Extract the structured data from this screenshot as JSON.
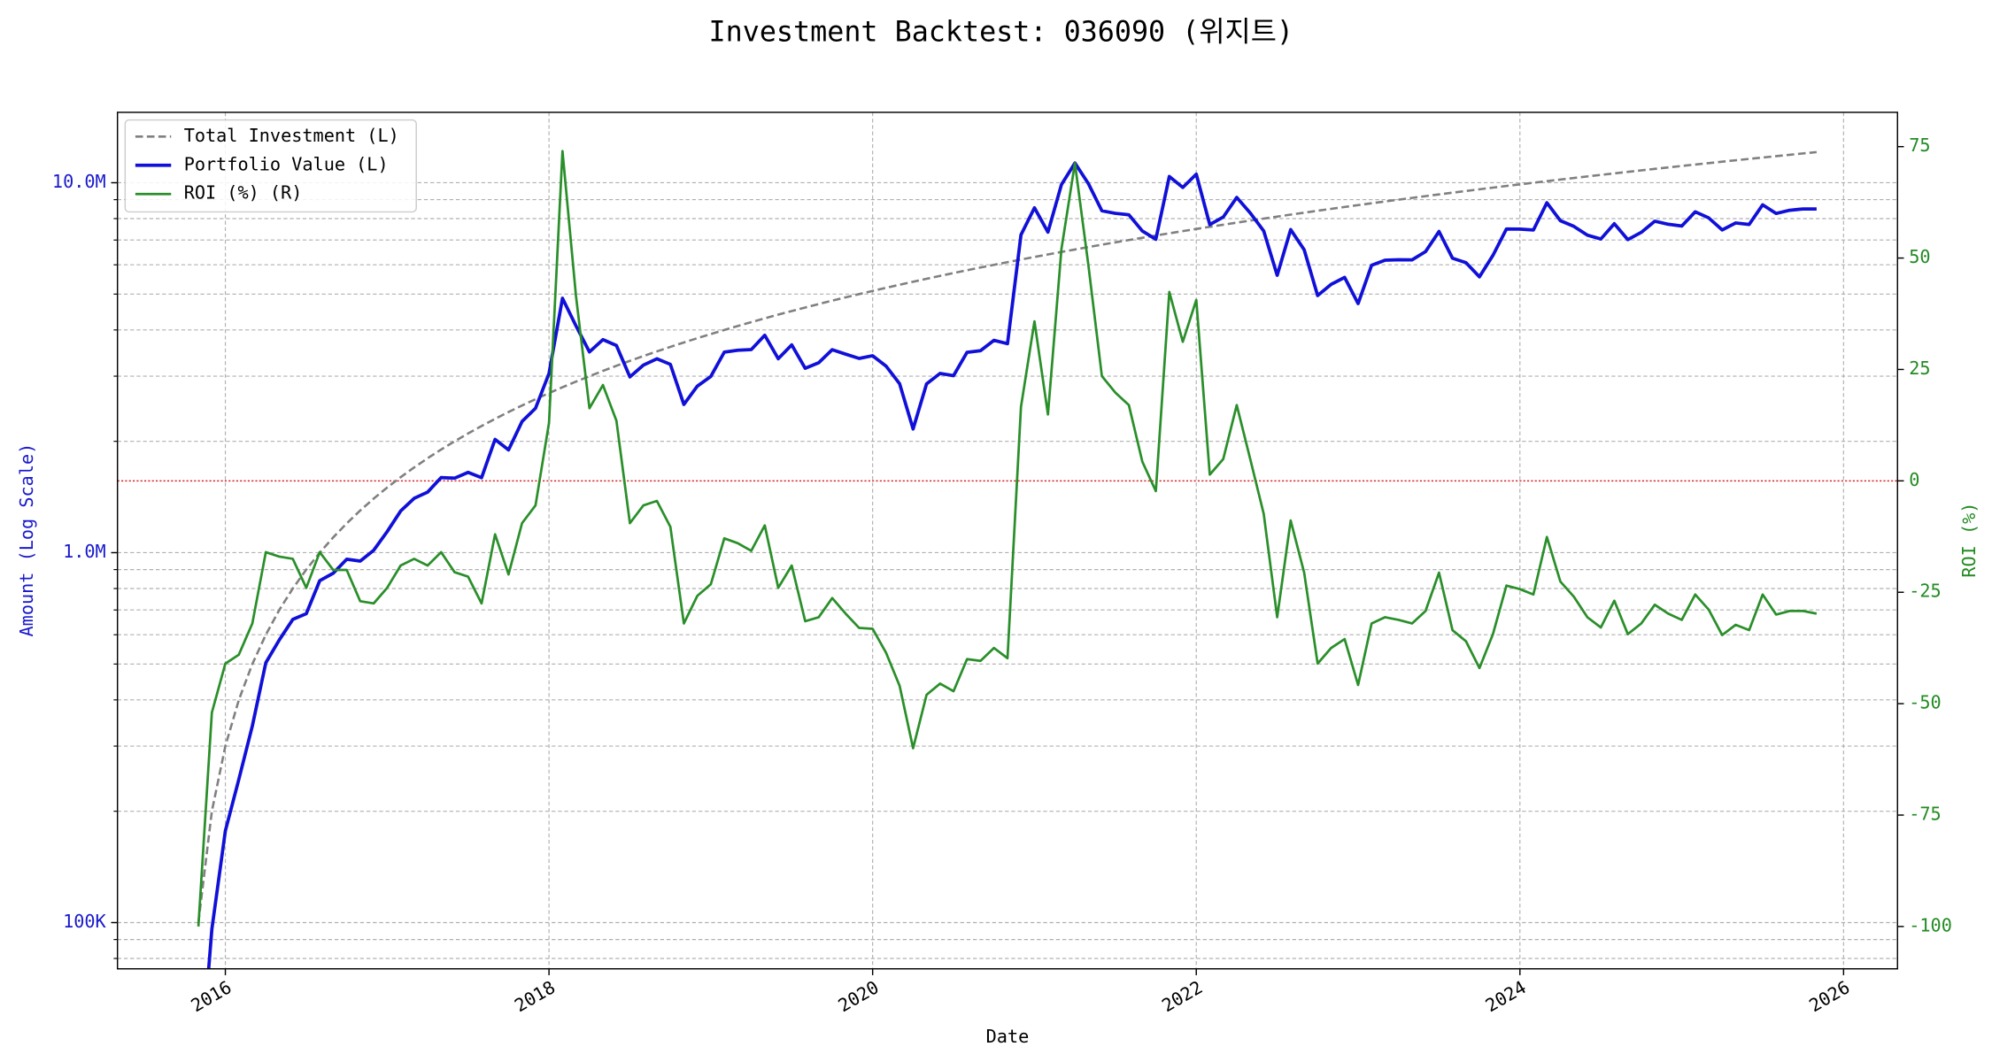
{
  "chart_data": {
    "type": "line",
    "title": "Investment Backtest: 036090 (위지트)",
    "x_label": "Date",
    "y_label": "Amount (Log Scale)",
    "y2_label": "ROI (%)",
    "log_y": true,
    "grid": true,
    "legend": "upper left",
    "y_color": "#1a1acc",
    "y2_color": "#228b22",
    "refline": {
      "axis": "y2",
      "value": 0,
      "color": "#d62728"
    },
    "x": [
      "2015-11",
      "2015-12",
      "2016-01",
      "2016-02",
      "2016-03",
      "2016-04",
      "2016-05",
      "2016-06",
      "2016-07",
      "2016-08",
      "2016-09",
      "2016-10",
      "2016-11",
      "2016-12",
      "2017-01",
      "2017-02",
      "2017-03",
      "2017-04",
      "2017-05",
      "2017-06",
      "2017-07",
      "2017-08",
      "2017-09",
      "2017-10",
      "2017-11",
      "2017-12",
      "2018-01",
      "2018-02",
      "2018-03",
      "2018-04",
      "2018-05",
      "2018-06",
      "2018-07",
      "2018-08",
      "2018-09",
      "2018-10",
      "2018-11",
      "2018-12",
      "2019-01",
      "2019-02",
      "2019-03",
      "2019-04",
      "2019-05",
      "2019-06",
      "2019-07",
      "2019-08",
      "2019-09",
      "2019-10",
      "2019-11",
      "2019-12",
      "2020-01",
      "2020-02",
      "2020-03",
      "2020-04",
      "2020-05",
      "2020-06",
      "2020-07",
      "2020-08",
      "2020-09",
      "2020-10",
      "2020-11",
      "2020-12",
      "2021-01",
      "2021-02",
      "2021-03",
      "2021-04",
      "2021-05",
      "2021-06",
      "2021-07",
      "2021-08",
      "2021-09",
      "2021-10",
      "2021-11",
      "2021-12",
      "2022-01",
      "2022-02",
      "2022-03",
      "2022-04",
      "2022-05",
      "2022-06",
      "2022-07",
      "2022-08",
      "2022-09",
      "2022-10",
      "2022-11",
      "2022-12",
      "2023-01",
      "2023-02",
      "2023-03",
      "2023-04",
      "2023-05",
      "2023-06",
      "2023-07",
      "2023-08",
      "2023-09",
      "2023-10",
      "2023-11",
      "2023-12",
      "2024-01",
      "2024-02",
      "2024-03",
      "2024-04",
      "2024-05",
      "2024-06",
      "2024-07",
      "2024-08",
      "2024-09",
      "2024-10",
      "2024-11",
      "2024-12",
      "2025-01",
      "2025-02",
      "2025-03",
      "2025-04",
      "2025-05",
      "2025-06",
      "2025-07",
      "2025-08",
      "2025-09",
      "2025-10",
      "2025-11"
    ],
    "xlim": [
      "2015-05",
      "2026-05"
    ],
    "xticks": [
      {
        "value": "2016-01",
        "label": "2016"
      },
      {
        "value": "2018-01",
        "label": "2018"
      },
      {
        "value": "2020-01",
        "label": "2020"
      },
      {
        "value": "2022-01",
        "label": "2022"
      },
      {
        "value": "2024-01",
        "label": "2024"
      },
      {
        "value": "2026-01",
        "label": "2026"
      }
    ],
    "ylim": [
      75000,
      15500000
    ],
    "yticks": [
      {
        "value": 100000,
        "label": "100K"
      },
      {
        "value": 1000000,
        "label": "1.0M"
      },
      {
        "value": 10000000,
        "label": "10.0M"
      }
    ],
    "yminorticks": [
      80000,
      90000,
      200000,
      300000,
      400000,
      500000,
      600000,
      700000,
      800000,
      900000,
      2000000,
      3000000,
      4000000,
      5000000,
      6000000,
      7000000,
      8000000,
      9000000
    ],
    "y2lim": [
      -109.5,
      82.7
    ],
    "y2ticks": [
      -100,
      -75,
      -50,
      -25,
      0,
      25,
      50,
      75
    ],
    "series": [
      {
        "name": "Total Investment (L)",
        "color": "#808080",
        "style": "dashed",
        "width": 1.8,
        "axis": "y",
        "values": [
          100000,
          200000,
          300000,
          400000,
          500000,
          600000,
          700000,
          800000,
          900000,
          1000000,
          1100000,
          1200000,
          1300000,
          1400000,
          1500000,
          1600000,
          1700000,
          1800000,
          1900000,
          2000000,
          2100000,
          2200000,
          2300000,
          2400000,
          2500000,
          2600000,
          2700000,
          2800000,
          2900000,
          3000000,
          3100000,
          3200000,
          3300000,
          3400000,
          3500000,
          3600000,
          3700000,
          3800000,
          3900000,
          4000000,
          4100000,
          4200000,
          4300000,
          4400000,
          4500000,
          4600000,
          4700000,
          4800000,
          4900000,
          5000000,
          5100000,
          5200000,
          5300000,
          5400000,
          5500000,
          5600000,
          5700000,
          5800000,
          5900000,
          6000000,
          6100000,
          6200000,
          6300000,
          6400000,
          6500000,
          6600000,
          6700000,
          6800000,
          6900000,
          7000000,
          7100000,
          7200000,
          7300000,
          7400000,
          7500000,
          7600000,
          7700000,
          7800000,
          7900000,
          8000000,
          8100000,
          8200000,
          8300000,
          8400000,
          8500000,
          8600000,
          8700000,
          8800000,
          8900000,
          9000000,
          9100000,
          9200000,
          9300000,
          9400000,
          9500000,
          9600000,
          9700000,
          9800000,
          9900000,
          10000000,
          10100000,
          10200000,
          10300000,
          10400000,
          10500000,
          10600000,
          10700000,
          10800000,
          10900000,
          11000000,
          11100000,
          11200000,
          11300000,
          11400000,
          11500000,
          11600000,
          11700000,
          11800000,
          11900000,
          12000000,
          12100000
        ]
      },
      {
        "name": "Portfolio Value (L)",
        "color": "#1010d8",
        "style": "solid",
        "width": 2.6,
        "axis": "y",
        "values": [
          0,
          96000,
          177000,
          244000,
          340000,
          504000,
          581000,
          660000,
          684000,
          840000,
          880000,
          960000,
          949000,
          1015000,
          1140000,
          1296000,
          1402500,
          1458000,
          1596000,
          1590000,
          1648500,
          1595000,
          2024000,
          1896000,
          2262500,
          2457000,
          3051000,
          4872000,
          4103500,
          3489000,
          3766500,
          3632000,
          2986500,
          3213000,
          3342500,
          3229200,
          2516000,
          2819600,
          2995200,
          3484000,
          3526000,
          3540600,
          3870000,
          3344000,
          3645000,
          3151000,
          3261800,
          3537600,
          3439800,
          3350000,
          3406800,
          3192800,
          2862000,
          2160000,
          2860000,
          3052000,
          3009600,
          3480000,
          3516400,
          3750000,
          3672200,
          7229200,
          8555400,
          7353600,
          9880000,
          11305800,
          9942800,
          8398000,
          8266200,
          8190000,
          7405300,
          7034400,
          10395200,
          9708800,
          10545000,
          7706400,
          8077300,
          9126000,
          8287100,
          7408000,
          5621400,
          7470200,
          6590200,
          4956000,
          5312500,
          5547000,
          4715400,
          5984000,
          6176600,
          6192000,
          6188000,
          6513600,
          7384200,
          6251000,
          6080000,
          5568000,
          6363200,
          7497000,
          7494300,
          7450000,
          8827400,
          7894800,
          7622000,
          7217600,
          7045500,
          7748600,
          7019200,
          7344000,
          7869800,
          7722000,
          7636800,
          8344000,
          8034300,
          7455600,
          7785500,
          7714000,
          8716500,
          8260000,
          8425200,
          8496000,
          8494200
        ]
      },
      {
        "name": "ROI (%) (R)",
        "color": "#2a8f2a",
        "style": "solid",
        "width": 1.9,
        "axis": "y2",
        "values": [
          -100,
          -52,
          -41,
          -39,
          -32,
          -16,
          -17,
          -17.5,
          -24,
          -16,
          -20,
          -20,
          -27,
          -27.5,
          -24,
          -19,
          -17.5,
          -19,
          -16,
          -20.5,
          -21.5,
          -27.5,
          -12,
          -21,
          -9.5,
          -5.5,
          13,
          74,
          41.5,
          16.3,
          21.5,
          13.5,
          -9.5,
          -5.5,
          -4.5,
          -10.3,
          -32,
          -25.8,
          -23.2,
          -12.9,
          -14,
          -15.7,
          -10,
          -24,
          -19,
          -31.5,
          -30.6,
          -26.3,
          -29.8,
          -33,
          -33.2,
          -38.6,
          -46,
          -60,
          -48,
          -45.5,
          -47.2,
          -40,
          -40.4,
          -37.5,
          -39.8,
          16.6,
          35.8,
          14.9,
          52,
          71.3,
          48.4,
          23.5,
          19.8,
          17,
          4.3,
          -2.3,
          42.4,
          31.2,
          40.6,
          1.4,
          4.9,
          17,
          4.9,
          -7.4,
          -30.6,
          -8.9,
          -20.6,
          -41,
          -37.5,
          -35.5,
          -45.8,
          -32,
          -30.6,
          -31.2,
          -32,
          -29.2,
          -20.6,
          -33.5,
          -36,
          -42,
          -34.4,
          -23.5,
          -24.3,
          -25.5,
          -12.6,
          -22.6,
          -26,
          -30.6,
          -32.9,
          -26.9,
          -34.4,
          -32,
          -27.8,
          -29.8,
          -31.2,
          -25.5,
          -28.9,
          -34.6,
          -32.3,
          -33.5,
          -25.5,
          -30,
          -29.2,
          -29.2,
          -29.8
        ]
      }
    ]
  }
}
